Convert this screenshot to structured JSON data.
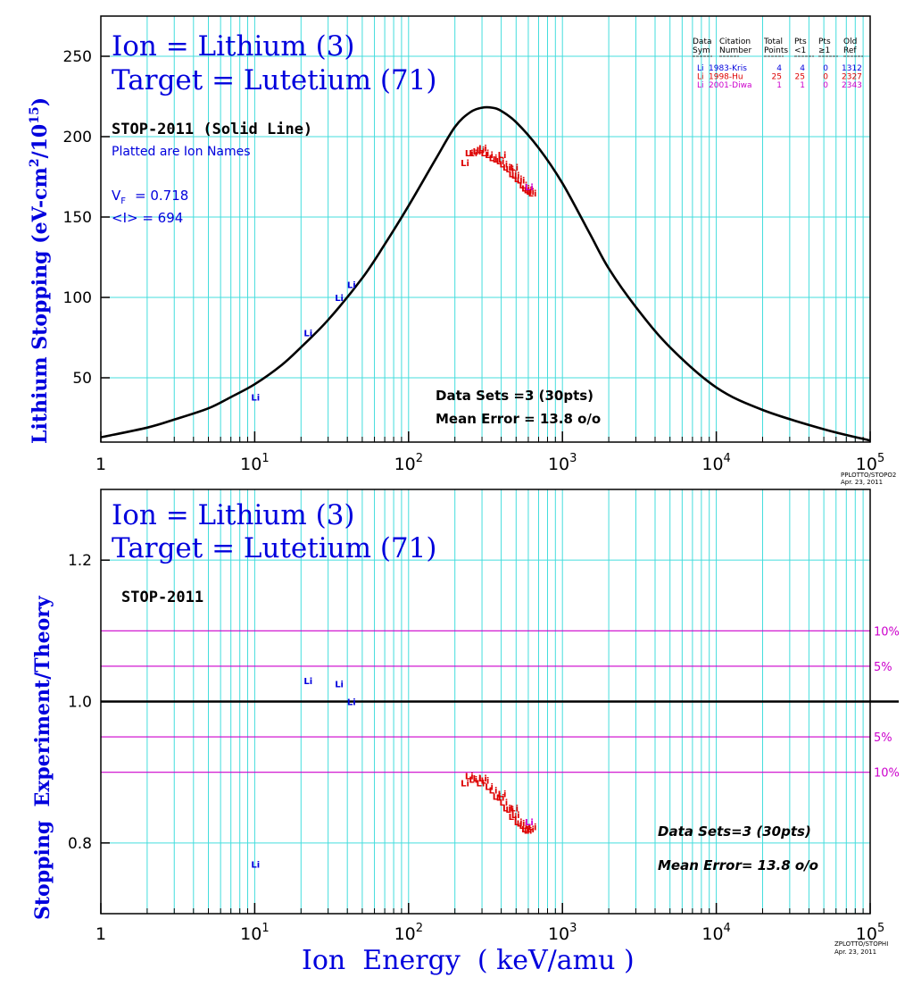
{
  "chart_data": [
    {
      "type": "line",
      "title_lines": [
        "Ion = Lithium (3)",
        "Target = Lutetium (71)"
      ],
      "ylabel_html": {
        "base": "Lithium Stopping (eV-cm",
        "exp2": "2",
        "mid": "/10",
        "exp15": "15",
        "end": ")"
      },
      "xscale": "log",
      "xlim": [
        1,
        100000
      ],
      "ylim": [
        10,
        275
      ],
      "yticks": [
        50,
        100,
        150,
        200,
        250
      ],
      "grid": true,
      "xtick_labels": [
        {
          "x": 1,
          "base": "1",
          "exp": ""
        },
        {
          "x": 10,
          "base": "10",
          "exp": "1"
        },
        {
          "x": 100,
          "base": "10",
          "exp": "2"
        },
        {
          "x": 1000,
          "base": "10",
          "exp": "3"
        },
        {
          "x": 10000,
          "base": "10",
          "exp": "4"
        },
        {
          "x": 100000,
          "base": "10",
          "exp": "5"
        }
      ],
      "annotations": {
        "theory": "STOP-2011 (Solid Line)",
        "plotted": "Platted are Ion Names",
        "vf_label": "V",
        "vf_sub": "F",
        "vf_value": "= 0.718",
        "i_label": "<I> = 694",
        "data_sets": "Data Sets =3 (30pts)",
        "mean_error": "Mean Error = 13.8 o/o",
        "stamp_1": "PPLOTTO/STOPO2",
        "stamp_2": "Apr. 23, 2011"
      },
      "legend": {
        "placement": "top-right",
        "headers": [
          [
            "Data",
            "Sym"
          ],
          [
            "Citation",
            "Number"
          ],
          [
            "Total",
            "Points"
          ],
          [
            "Pts",
            "<1"
          ],
          [
            "Pts",
            "≥1"
          ],
          [
            "Old",
            "Ref"
          ]
        ],
        "rows": [
          {
            "sym": "Li",
            "citation": "1983-Kris",
            "total": "4",
            "lt1": "4",
            "ge1": "0",
            "ref": "1312",
            "color": "#0000dd"
          },
          {
            "sym": "Li",
            "citation": "1998-Hu",
            "total": "25",
            "lt1": "25",
            "ge1": "0",
            "ref": "2327",
            "color": "#dd0000"
          },
          {
            "sym": "Li",
            "citation": "2001-Diwa",
            "total": "1",
            "lt1": "1",
            "ge1": "0",
            "ref": "2343",
            "color": "#cc00cc"
          }
        ]
      },
      "theory_curve": {
        "name": "STOP-2011",
        "x": [
          1,
          2,
          3,
          5,
          7,
          10,
          15,
          20,
          30,
          50,
          70,
          100,
          150,
          200,
          250,
          300,
          350,
          400,
          500,
          700,
          1000,
          1500,
          2000,
          3000,
          5000,
          10000,
          20000,
          50000,
          100000
        ],
        "y": [
          13,
          19,
          24,
          31,
          38,
          46,
          58,
          69,
          86,
          112,
          133,
          157,
          186,
          206,
          215,
          218,
          218,
          216,
          209,
          193,
          171,
          140,
          118,
          94,
          69,
          44,
          30,
          18,
          11
        ]
      },
      "series": [
        {
          "name": "1983-Kris",
          "label": "Li",
          "color": "#0000dd",
          "points": [
            [
              10,
              38
            ],
            [
              22,
              78
            ],
            [
              35,
              100
            ],
            [
              42,
              108
            ]
          ]
        },
        {
          "name": "1998-Hu",
          "label": "Li",
          "color": "#dd0000",
          "points": [
            [
              230,
              184
            ],
            [
              245,
              190
            ],
            [
              260,
              190
            ],
            [
              275,
              191
            ],
            [
              290,
              192
            ],
            [
              310,
              190
            ],
            [
              330,
              189
            ],
            [
              350,
              187
            ],
            [
              370,
              186
            ],
            [
              390,
              185
            ],
            [
              410,
              183
            ],
            [
              430,
              181
            ],
            [
              450,
              180
            ],
            [
              470,
              177
            ],
            [
              490,
              176
            ],
            [
              510,
              174
            ],
            [
              530,
              173
            ],
            [
              550,
              170
            ],
            [
              570,
              168
            ],
            [
              590,
              167
            ],
            [
              610,
              166
            ],
            [
              630,
              165
            ],
            [
              300,
              193
            ],
            [
              400,
              189
            ],
            [
              480,
              181
            ]
          ]
        },
        {
          "name": "2001-Diwa",
          "label": "Li",
          "color": "#cc00cc",
          "points": [
            [
              600,
              169
            ]
          ]
        }
      ]
    },
    {
      "type": "scatter",
      "title_lines": [
        "Ion = Lithium (3)",
        "Target = Lutetium (71)"
      ],
      "ylabel": "Stopping  Experiment/Theory",
      "xlabel": "Ion  Energy  ( keV/amu )",
      "xscale": "log",
      "xlim": [
        1,
        100000
      ],
      "ylim": [
        0.7,
        1.3
      ],
      "yticks": [
        0.8,
        1.0,
        1.2
      ],
      "ytick_labels": [
        "0.8",
        "1.0",
        "1.2"
      ],
      "grid": true,
      "xtick_labels": [
        {
          "x": 1,
          "base": "1",
          "exp": ""
        },
        {
          "x": 10,
          "base": "10",
          "exp": "1"
        },
        {
          "x": 100,
          "base": "10",
          "exp": "2"
        },
        {
          "x": 1000,
          "base": "10",
          "exp": "3"
        },
        {
          "x": 10000,
          "base": "10",
          "exp": "4"
        },
        {
          "x": 100000,
          "base": "10",
          "exp": "5"
        }
      ],
      "reference_line": 1.0,
      "bands": [
        {
          "y": 1.1,
          "label": "10%"
        },
        {
          "y": 1.05,
          "label": "5%"
        },
        {
          "y": 0.95,
          "label": "5%"
        },
        {
          "y": 0.9,
          "label": "10%"
        }
      ],
      "band_color": "#cc00cc",
      "annotations": {
        "theory": "STOP-2011",
        "data_sets": "Data Sets=3 (30pts)",
        "mean_error": "Mean Error= 13.8 o/o",
        "stamp_1": "ZPLOTTO/STOPHI",
        "stamp_2": "Apr. 23, 2011"
      },
      "series": [
        {
          "name": "1983-Kris",
          "label": "Li",
          "color": "#0000dd",
          "points": [
            [
              10,
              0.77
            ],
            [
              22,
              1.03
            ],
            [
              35,
              1.025
            ],
            [
              42,
              1.0
            ]
          ]
        },
        {
          "name": "1998-Hu",
          "label": "Li",
          "color": "#dd0000",
          "points": [
            [
              230,
              0.885
            ],
            [
              245,
              0.895
            ],
            [
              260,
              0.89
            ],
            [
              275,
              0.892
            ],
            [
              290,
              0.885
            ],
            [
              310,
              0.889
            ],
            [
              330,
              0.88
            ],
            [
              350,
              0.875
            ],
            [
              370,
              0.866
            ],
            [
              390,
              0.865
            ],
            [
              410,
              0.858
            ],
            [
              430,
              0.85
            ],
            [
              450,
              0.848
            ],
            [
              470,
              0.838
            ],
            [
              490,
              0.84
            ],
            [
              510,
              0.83
            ],
            [
              530,
              0.828
            ],
            [
              550,
              0.825
            ],
            [
              570,
              0.82
            ],
            [
              590,
              0.818
            ],
            [
              610,
              0.82
            ],
            [
              630,
              0.823
            ],
            [
              300,
              0.892
            ],
            [
              400,
              0.87
            ],
            [
              480,
              0.85
            ]
          ]
        },
        {
          "name": "2001-Diwa",
          "label": "Li",
          "color": "#cc00cc",
          "points": [
            [
              600,
              0.83
            ]
          ]
        }
      ]
    }
  ]
}
